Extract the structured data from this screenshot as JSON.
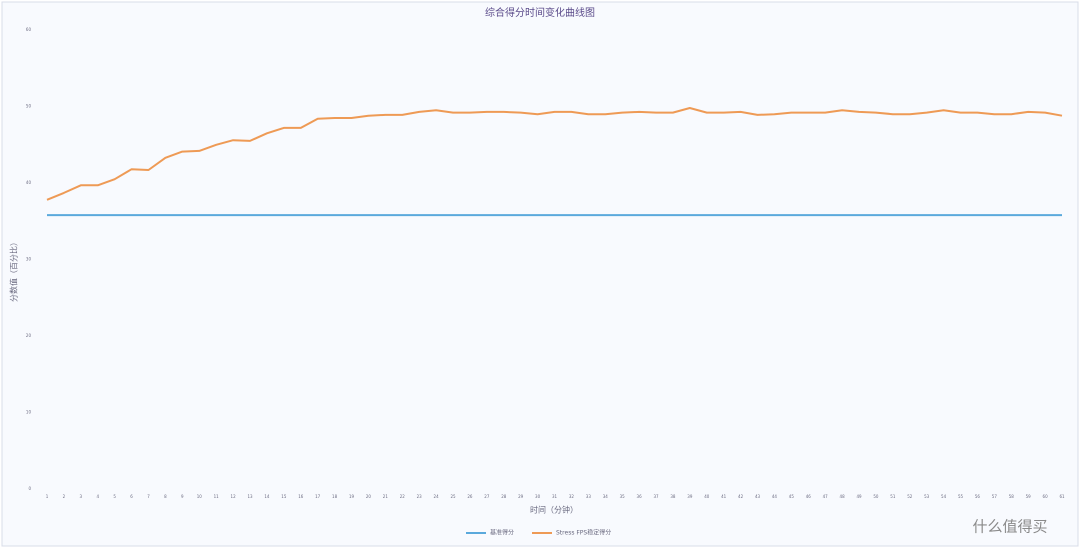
{
  "chart_data": {
    "type": "line",
    "title": "综合得分时间变化曲线图",
    "x_label": "时间（分钟）",
    "y_label": "分数值（百分比）",
    "categories": [
      1,
      2,
      3,
      4,
      5,
      6,
      7,
      8,
      9,
      10,
      11,
      12,
      13,
      14,
      15,
      16,
      17,
      18,
      19,
      20,
      21,
      22,
      23,
      24,
      25,
      26,
      27,
      28,
      29,
      30,
      31,
      32,
      33,
      34,
      35,
      36,
      37,
      38,
      39,
      40,
      41,
      42,
      43,
      44,
      45,
      46,
      47,
      48,
      49,
      50,
      51,
      52,
      53,
      54,
      55,
      56,
      57,
      58,
      59,
      60,
      61
    ],
    "series": [
      {
        "name": "基准得分",
        "color": "#5aa9dc",
        "values": [
          35.8,
          35.8,
          35.8,
          35.8,
          35.8,
          35.8,
          35.8,
          35.8,
          35.8,
          35.8,
          35.8,
          35.8,
          35.8,
          35.8,
          35.8,
          35.8,
          35.8,
          35.8,
          35.8,
          35.8,
          35.8,
          35.8,
          35.8,
          35.8,
          35.8,
          35.8,
          35.8,
          35.8,
          35.8,
          35.8,
          35.8,
          35.8,
          35.8,
          35.8,
          35.8,
          35.8,
          35.8,
          35.8,
          35.8,
          35.8,
          35.8,
          35.8,
          35.8,
          35.8,
          35.8,
          35.8,
          35.8,
          35.8,
          35.8,
          35.8,
          35.8,
          35.8,
          35.8,
          35.8,
          35.8,
          35.8,
          35.8,
          35.8,
          35.8,
          35.8,
          35.8
        ]
      },
      {
        "name": "Stress FPS稳定得分",
        "color": "#ee9a55",
        "values": [
          37.8,
          38.7,
          39.7,
          39.7,
          40.5,
          41.8,
          41.7,
          43.3,
          44.1,
          44.2,
          45.0,
          45.6,
          45.5,
          46.5,
          47.2,
          47.2,
          48.4,
          48.5,
          48.5,
          48.8,
          48.9,
          48.9,
          49.3,
          49.5,
          49.2,
          49.2,
          49.3,
          49.3,
          49.2,
          49.0,
          49.3,
          49.3,
          49.0,
          49.0,
          49.2,
          49.3,
          49.2,
          49.2,
          49.8,
          49.2,
          49.2,
          49.3,
          48.9,
          49.0,
          49.2,
          49.2,
          49.2,
          49.5,
          49.3,
          49.2,
          49.0,
          49.0,
          49.2,
          49.5,
          49.2,
          49.2,
          49.0,
          49.0,
          49.3,
          49.2,
          48.8
        ]
      }
    ],
    "ylim": [
      0,
      60
    ],
    "yticks": [
      0,
      10,
      20,
      30,
      40,
      50,
      60
    ],
    "grid": false,
    "legend": "bottom"
  },
  "watermark": "什么值得买"
}
